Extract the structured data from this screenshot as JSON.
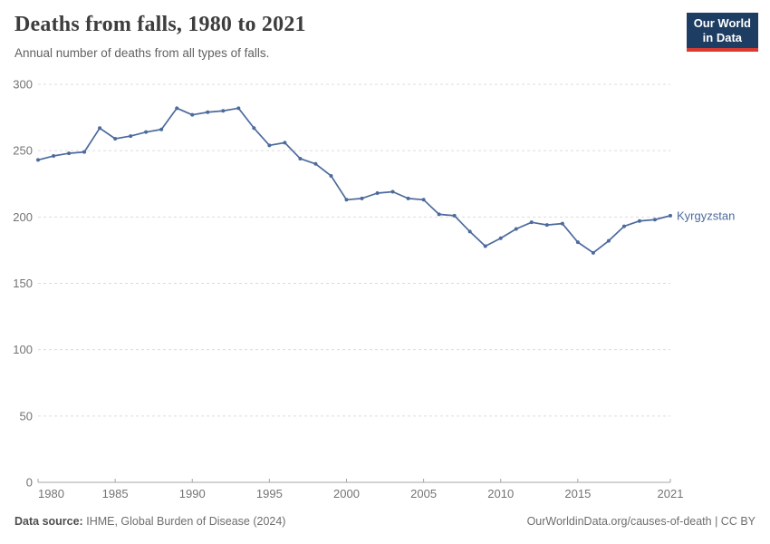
{
  "header": {
    "title": "Deaths from falls, 1980 to 2021",
    "subtitle": "Annual number of deaths from all types of falls.",
    "logo_line1": "Our World",
    "logo_line2": "in Data"
  },
  "footer": {
    "source_label": "Data source:",
    "source_value": "IHME, Global Burden of Disease (2024)",
    "license": "OurWorldinData.org/causes-of-death | CC BY"
  },
  "colors": {
    "line": "#4c6a9c",
    "gridline": "#dcdcdc",
    "axis": "#a6a6a6",
    "tick_label": "#737373",
    "logo_bg": "#1d3d63",
    "logo_red": "#d93b33"
  },
  "chart_data": {
    "type": "line",
    "title": "Deaths from falls, 1980 to 2021",
    "xlabel": "",
    "ylabel": "",
    "xlim": [
      1980,
      2021
    ],
    "ylim": [
      0,
      300
    ],
    "xticks": [
      1980,
      1985,
      1990,
      1995,
      2000,
      2005,
      2010,
      2015,
      2021
    ],
    "yticks": [
      0,
      50,
      100,
      150,
      200,
      250,
      300
    ],
    "grid": "horizontal-dashed",
    "legend_position": "end-of-line-label",
    "x": [
      1980,
      1981,
      1982,
      1983,
      1984,
      1985,
      1986,
      1987,
      1988,
      1989,
      1990,
      1991,
      1992,
      1993,
      1994,
      1995,
      1996,
      1997,
      1998,
      1999,
      2000,
      2001,
      2002,
      2003,
      2004,
      2005,
      2006,
      2007,
      2008,
      2009,
      2010,
      2011,
      2012,
      2013,
      2014,
      2015,
      2016,
      2017,
      2018,
      2019,
      2020,
      2021
    ],
    "series": [
      {
        "name": "Kyrgyzstan",
        "color": "#4c6a9c",
        "values": [
          243,
          246,
          248,
          249,
          267,
          259,
          261,
          264,
          266,
          282,
          277,
          279,
          280,
          282,
          267,
          254,
          256,
          244,
          240,
          231,
          213,
          214,
          218,
          219,
          214,
          213,
          202,
          201,
          189,
          178,
          184,
          191,
          196,
          194,
          195,
          181,
          173,
          182,
          193,
          197,
          198,
          201
        ]
      }
    ]
  }
}
